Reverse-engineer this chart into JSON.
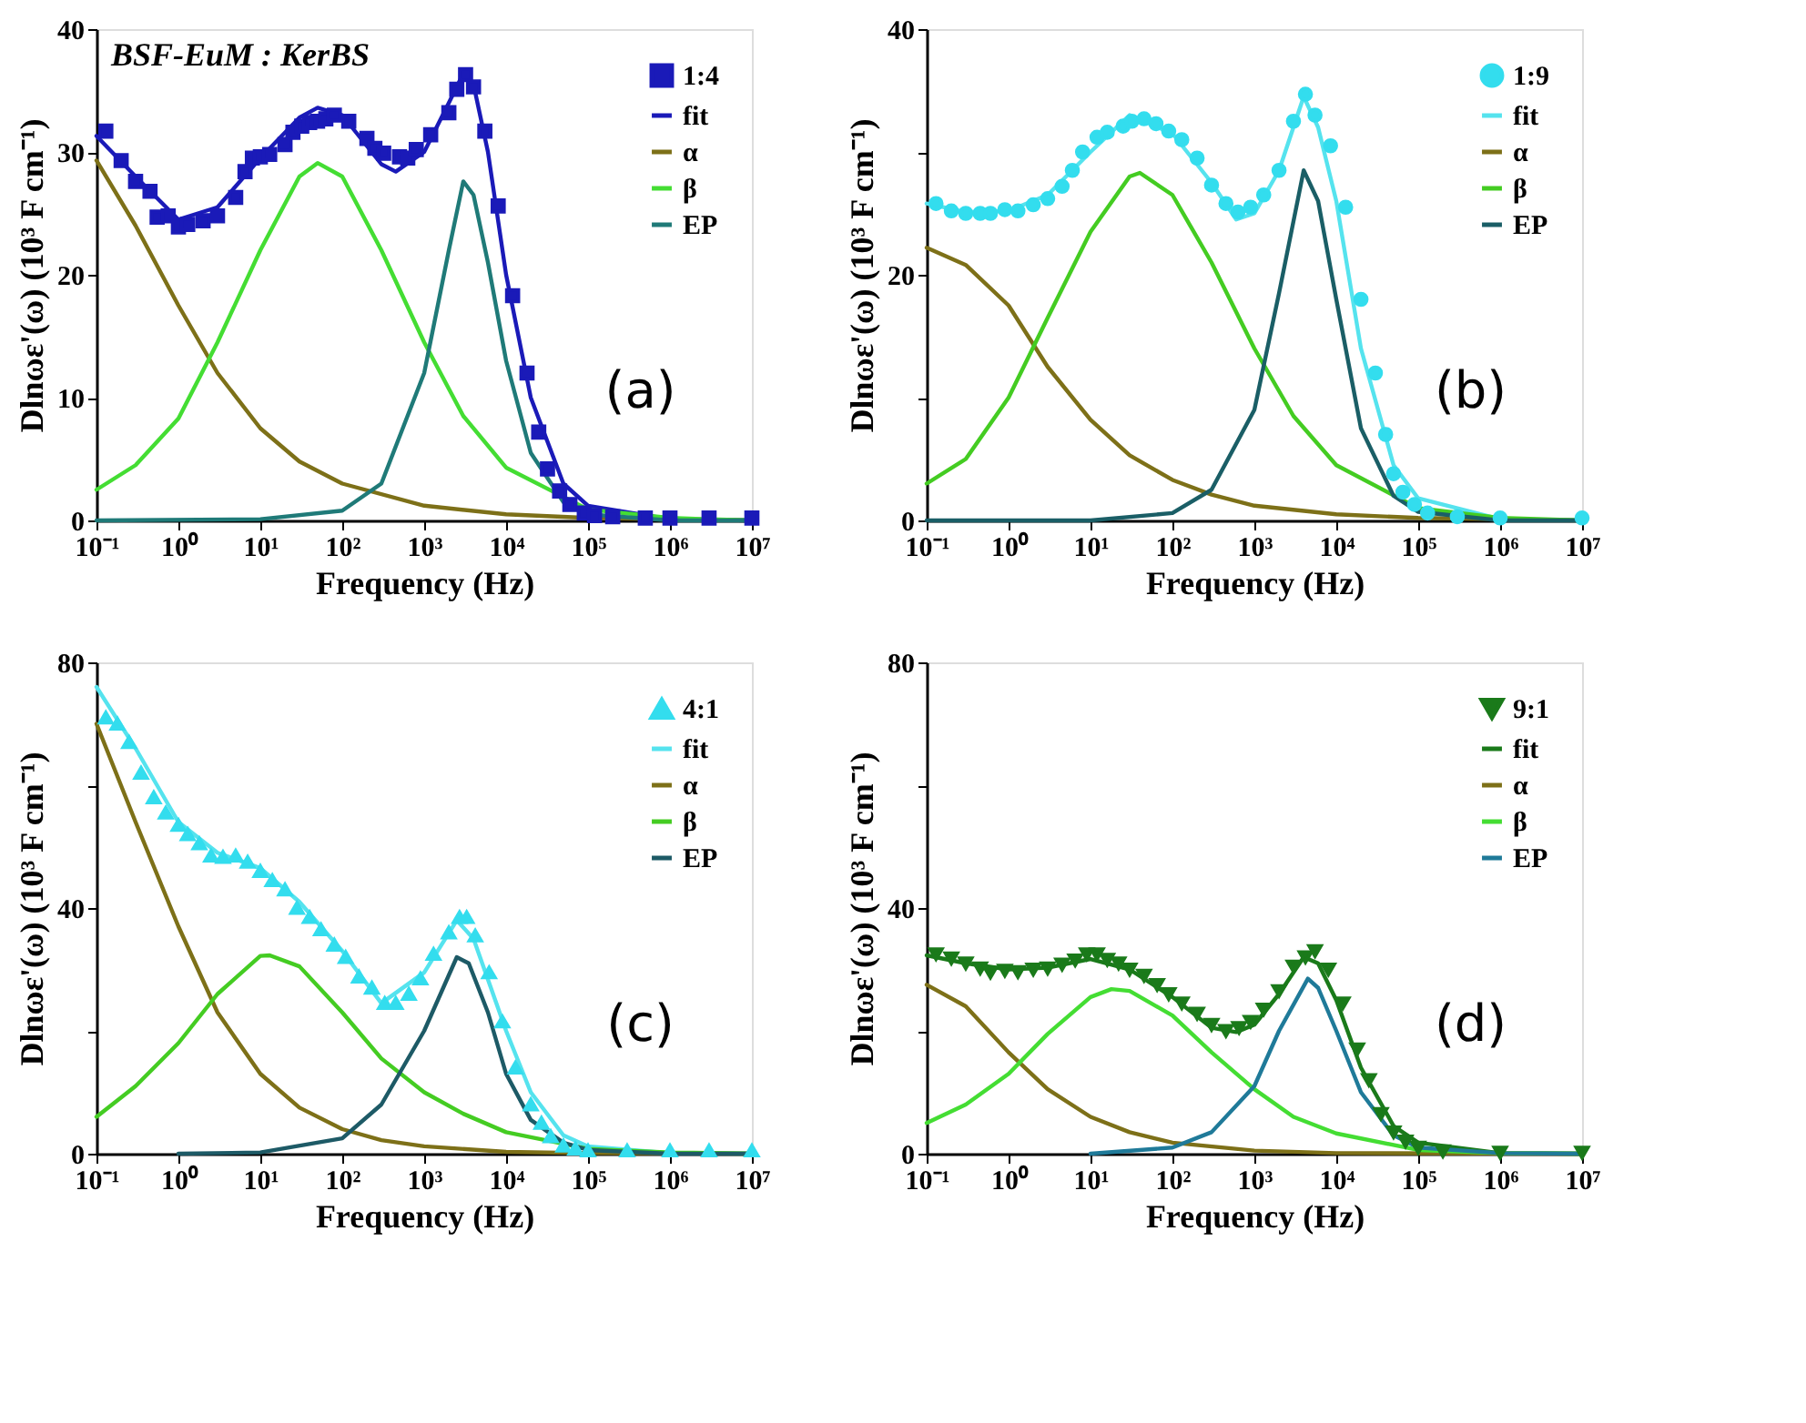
{
  "chart_data": [
    {
      "type": "line",
      "xlabel": "Frequency (Hz)",
      "ylabel": "Dlnωε'(ω) (10³ F cm⁻¹)",
      "log": "x",
      "legend": "top right",
      "xlim": [
        0.1,
        10000000
      ],
      "ylim": [
        0,
        40
      ],
      "xticks": [
        {
          "value": 0.1,
          "label": "10⁻¹"
        },
        {
          "value": 1,
          "label": "10⁰"
        },
        {
          "value": 10,
          "label": "10¹"
        },
        {
          "value": 100,
          "label": "10²"
        },
        {
          "value": 1000,
          "label": "10³"
        },
        {
          "value": 10000,
          "label": "10⁴"
        },
        {
          "value": 100000,
          "label": "10⁵"
        },
        {
          "value": 1000000,
          "label": "10⁶"
        },
        {
          "value": 10000000,
          "label": "10⁷"
        }
      ],
      "yticks": [
        0,
        10,
        20,
        30,
        40
      ],
      "annotations": [
        "BSF-EuM : KerBS",
        "(a)"
      ],
      "series": [
        {
          "name": "1:4",
          "type": "scatter",
          "marker": "square",
          "color": "#1a1ab8",
          "x": [
            0.13,
            0.2,
            0.3,
            0.45,
            0.55,
            0.75,
            1,
            1.3,
            2,
            3,
            5,
            6.5,
            8,
            10,
            13,
            20,
            25,
            32,
            40,
            50,
            63,
            80,
            120,
            200,
            250,
            320,
            500,
            630,
            800,
            1200,
            2000,
            2500,
            3200,
            4000,
            5500,
            8000,
            12000,
            18000,
            25000,
            32000,
            45000,
            60000,
            90000,
            120000,
            200000,
            500000,
            1000000,
            3000000,
            10000000
          ],
          "values": [
            31.7,
            29.3,
            27.6,
            26.8,
            24.7,
            24.8,
            23.9,
            24.1,
            24.4,
            24.8,
            26.3,
            28.4,
            29.5,
            29.6,
            29.8,
            30.6,
            31.6,
            32.1,
            32.4,
            32.5,
            32.7,
            33.0,
            32.5,
            31.1,
            30.3,
            29.9,
            29.6,
            29.5,
            30.2,
            31.4,
            33.2,
            35.1,
            36.3,
            35.3,
            31.7,
            25.6,
            18.3,
            12.0,
            7.2,
            4.2,
            2.4,
            1.3,
            0.6,
            0.4,
            0.3,
            0.2,
            0.2,
            0.2,
            0.2
          ]
        },
        {
          "name": "fit",
          "type": "line",
          "color": "#1a1ab8",
          "x": [
            0.1,
            0.3,
            1,
            3,
            10,
            30,
            50,
            100,
            300,
            450,
            1000,
            2000,
            3000,
            4000,
            6000,
            10000,
            20000,
            50000,
            100000,
            1000000,
            10000000
          ],
          "values": [
            31.3,
            28.0,
            24.5,
            25.5,
            29.5,
            32.8,
            33.6,
            33.0,
            29.0,
            28.4,
            30.0,
            34.0,
            36.4,
            35.5,
            30,
            20,
            10,
            3.0,
            1.2,
            0.1,
            0
          ]
        },
        {
          "name": "α",
          "type": "line",
          "color": "#7d7018",
          "x": [
            0.1,
            0.3,
            1,
            3,
            10,
            30,
            100,
            1000,
            10000,
            100000,
            10000000
          ],
          "values": [
            29.3,
            24,
            17.5,
            12.0,
            7.5,
            4.8,
            3.0,
            1.2,
            0.5,
            0.2,
            0
          ]
        },
        {
          "name": "β",
          "type": "line",
          "color": "#44dd33",
          "x": [
            0.1,
            0.3,
            1,
            3,
            10,
            30,
            50,
            100,
            300,
            1000,
            3000,
            10000,
            100000,
            1000000,
            10000000
          ],
          "values": [
            2.5,
            4.5,
            8.3,
            14.5,
            22,
            28,
            29.1,
            28,
            22,
            14.5,
            8.5,
            4.3,
            0.9,
            0.2,
            0
          ]
        },
        {
          "name": "EP",
          "type": "line",
          "color": "#1f7a78",
          "x": [
            0.1,
            10,
            100,
            300,
            1000,
            2000,
            3000,
            4000,
            6000,
            10000,
            20000,
            50000,
            100000,
            1000000,
            10000000
          ],
          "values": [
            0,
            0.1,
            0.8,
            3,
            12,
            22,
            27.6,
            26.5,
            21,
            13,
            5.5,
            1.5,
            0.5,
            0,
            0
          ]
        }
      ]
    },
    {
      "type": "line",
      "xlabel": "Frequency (Hz)",
      "ylabel": "Dlnωε'(ω) (10³ F cm⁻¹)",
      "log": "x",
      "legend": "top right",
      "xlim": [
        0.1,
        10000000
      ],
      "ylim": [
        0,
        40
      ],
      "xticks": [
        {
          "value": 0.1,
          "label": "10⁻¹"
        },
        {
          "value": 1,
          "label": "10⁰"
        },
        {
          "value": 10,
          "label": "10¹"
        },
        {
          "value": 100,
          "label": "10²"
        },
        {
          "value": 1000,
          "label": "10³"
        },
        {
          "value": 10000,
          "label": "10⁴"
        },
        {
          "value": 100000,
          "label": "10⁵"
        },
        {
          "value": 1000000,
          "label": "10⁶"
        },
        {
          "value": 10000000,
          "label": "10⁷"
        }
      ],
      "yticks": [
        0,
        {
          "value": 10,
          "label": null
        },
        20,
        {
          "value": 30,
          "label": null
        },
        40
      ],
      "annotations": [
        "(b)"
      ],
      "series": [
        {
          "name": "1:9",
          "type": "scatter",
          "marker": "circle",
          "color": "#33ddee",
          "x": [
            0.13,
            0.2,
            0.3,
            0.45,
            0.6,
            0.9,
            1.3,
            2,
            3,
            4.5,
            6,
            8,
            12,
            16,
            25,
            32,
            45,
            63,
            90,
            130,
            200,
            300,
            450,
            630,
            900,
            1300,
            2000,
            3000,
            4200,
            5500,
            8500,
            13000,
            20000,
            30000,
            40000,
            50000,
            65000,
            90000,
            130000,
            300000,
            1000000,
            10000000
          ],
          "values": [
            25.8,
            25.2,
            25.0,
            25.0,
            25.0,
            25.3,
            25.2,
            25.7,
            26.2,
            27.2,
            28.5,
            30.0,
            31.2,
            31.6,
            32.1,
            32.5,
            32.7,
            32.3,
            31.7,
            31.0,
            29.5,
            27.3,
            25.8,
            25.1,
            25.5,
            26.5,
            28.5,
            32.5,
            34.7,
            33.0,
            30.5,
            25.5,
            18,
            12,
            7,
            3.8,
            2.3,
            1.3,
            0.6,
            0.3,
            0.2,
            0.2
          ]
        },
        {
          "name": "fit",
          "type": "line",
          "color": "#55e3ee",
          "x": [
            0.1,
            0.3,
            1,
            3,
            10,
            30,
            100,
            300,
            600,
            1000,
            2000,
            4000,
            6000,
            10000,
            20000,
            50000,
            100000,
            1000000,
            10000000
          ],
          "values": [
            25.8,
            25.1,
            25.2,
            26.5,
            30.0,
            33.0,
            31.5,
            27.5,
            24.5,
            25,
            28.5,
            34.5,
            32,
            26,
            14,
            4.5,
            1.8,
            0.1,
            0
          ]
        },
        {
          "name": "α",
          "type": "line",
          "color": "#7d7018",
          "x": [
            0.1,
            0.3,
            1,
            3,
            10,
            30,
            100,
            300,
            1000,
            10000,
            100000,
            10000000
          ],
          "values": [
            22.2,
            20.8,
            17.5,
            12.5,
            8.2,
            5.3,
            3.3,
            2.1,
            1.2,
            0.5,
            0.2,
            0
          ]
        },
        {
          "name": "β",
          "type": "line",
          "color": "#44cc22",
          "x": [
            0.1,
            0.3,
            1,
            3,
            10,
            30,
            40,
            100,
            300,
            1000,
            3000,
            10000,
            100000,
            1000000,
            10000000
          ],
          "values": [
            3.0,
            5,
            10,
            16.5,
            23.5,
            28,
            28.3,
            26.5,
            21,
            14,
            8.5,
            4.5,
            1,
            0.2,
            0
          ]
        },
        {
          "name": "EP",
          "type": "line",
          "color": "#1a5e66",
          "x": [
            0.1,
            10,
            100,
            300,
            1000,
            2000,
            4000,
            6000,
            10000,
            20000,
            50000,
            100000,
            1000000,
            10000000
          ],
          "values": [
            0,
            0,
            0.6,
            2.5,
            9,
            18.5,
            28.5,
            26,
            18,
            7.5,
            2,
            0.7,
            0,
            0
          ]
        }
      ]
    },
    {
      "type": "line",
      "xlabel": "Frequency (Hz)",
      "ylabel": "Dlnωε'(ω) (10³ F cm⁻¹)",
      "log": "x",
      "legend": "top right",
      "xlim": [
        0.1,
        10000000
      ],
      "ylim": [
        0,
        80
      ],
      "xticks": [
        {
          "value": 0.1,
          "label": "10⁻¹"
        },
        {
          "value": 1,
          "label": "10⁰"
        },
        {
          "value": 10,
          "label": "10¹"
        },
        {
          "value": 100,
          "label": "10²"
        },
        {
          "value": 1000,
          "label": "10³"
        },
        {
          "value": 10000,
          "label": "10⁴"
        },
        {
          "value": 100000,
          "label": "10⁵"
        },
        {
          "value": 1000000,
          "label": "10⁶"
        },
        {
          "value": 10000000,
          "label": "10⁷"
        }
      ],
      "yticks": [
        0,
        {
          "value": 20,
          "label": null
        },
        40,
        {
          "value": 60,
          "label": null
        },
        80
      ],
      "annotations": [
        "(c)"
      ],
      "series": [
        {
          "name": "4:1",
          "type": "scatter",
          "marker": "triangle",
          "color": "#33ddee",
          "x": [
            0.13,
            0.18,
            0.25,
            0.35,
            0.5,
            0.7,
            1,
            1.3,
            1.8,
            2.5,
            3.5,
            5,
            7,
            10,
            14,
            20,
            28,
            40,
            55,
            80,
            110,
            160,
            230,
            330,
            450,
            650,
            900,
            1300,
            2000,
            2700,
            3300,
            4200,
            6200,
            9000,
            13000,
            20000,
            27000,
            35000,
            50000,
            70000,
            100000,
            300000,
            1000000,
            3000000,
            10000000
          ],
          "values": [
            71,
            70,
            67,
            62,
            58,
            55.5,
            53.5,
            52,
            50.5,
            48.5,
            48.3,
            48.5,
            47.5,
            46,
            44.5,
            43,
            40,
            38.5,
            36.5,
            34.0,
            32,
            28.8,
            27,
            24.5,
            24.5,
            26,
            28.5,
            32.5,
            36,
            38.5,
            38.5,
            35.5,
            29.5,
            21.5,
            14,
            8.0,
            5.0,
            2.8,
            1.3,
            0.8,
            0.5,
            0.5,
            0.5,
            0.5,
            0.5
          ]
        },
        {
          "name": "fit",
          "type": "line",
          "color": "#55e3ee",
          "x": [
            0.1,
            0.3,
            1,
            3,
            10,
            30,
            100,
            300,
            1000,
            2500,
            4000,
            10000,
            20000,
            50000,
            100000,
            1000000,
            10000000
          ],
          "values": [
            76,
            66,
            54,
            49,
            46.5,
            41,
            33,
            24.5,
            29.5,
            38,
            35,
            20,
            10,
            3,
            1.2,
            0.1,
            0
          ]
        },
        {
          "name": "α",
          "type": "line",
          "color": "#7d7018",
          "x": [
            0.1,
            0.3,
            1,
            3,
            10,
            30,
            100,
            300,
            1000,
            10000,
            100000,
            10000000
          ],
          "values": [
            70,
            54,
            37,
            23,
            13,
            7.5,
            4,
            2.2,
            1.2,
            0.3,
            0.1,
            0
          ]
        },
        {
          "name": "β",
          "type": "line",
          "color": "#44cc22",
          "x": [
            0.1,
            0.3,
            1,
            3,
            10,
            13,
            30,
            100,
            300,
            1000,
            3000,
            10000,
            100000,
            1000000,
            10000000
          ],
          "values": [
            6,
            11,
            18,
            26,
            32.2,
            32.3,
            30.5,
            23,
            15.5,
            10,
            6.5,
            3.5,
            0.8,
            0.2,
            0
          ]
        },
        {
          "name": "EP",
          "type": "line",
          "color": "#1d5a66",
          "x": [
            1,
            10,
            100,
            300,
            1000,
            2500,
            3500,
            6000,
            10000,
            20000,
            50000,
            100000,
            1000000,
            10000000
          ],
          "values": [
            0,
            0.2,
            2.5,
            8,
            20,
            32,
            31,
            23,
            13,
            5.5,
            1.8,
            0.6,
            0,
            0
          ]
        }
      ]
    },
    {
      "type": "line",
      "xlabel": "Frequency (Hz)",
      "ylabel": "Dlnωε'(ω) (10³ F cm⁻¹)",
      "log": "x",
      "legend": "top right",
      "xlim": [
        0.1,
        10000000
      ],
      "ylim": [
        0,
        80
      ],
      "xticks": [
        {
          "value": 0.1,
          "label": "10⁻¹"
        },
        {
          "value": 1,
          "label": "10⁰"
        },
        {
          "value": 10,
          "label": "10¹"
        },
        {
          "value": 100,
          "label": "10²"
        },
        {
          "value": 1000,
          "label": "10³"
        },
        {
          "value": 10000,
          "label": "10⁴"
        },
        {
          "value": 100000,
          "label": "10⁵"
        },
        {
          "value": 1000000,
          "label": "10⁶"
        },
        {
          "value": 10000000,
          "label": "10⁷"
        }
      ],
      "yticks": [
        0,
        {
          "value": 20,
          "label": null
        },
        40,
        {
          "value": 60,
          "label": null
        },
        80
      ],
      "annotations": [
        "(d)"
      ],
      "series": [
        {
          "name": "9:1",
          "type": "scatter",
          "marker": "triangle-down",
          "color": "#1a7a1a",
          "x": [
            0.13,
            0.2,
            0.3,
            0.45,
            0.6,
            0.9,
            1.3,
            2,
            3,
            4.5,
            6.5,
            9,
            12,
            16,
            22,
            30,
            45,
            65,
            90,
            130,
            200,
            300,
            450,
            650,
            900,
            1300,
            2000,
            3000,
            4200,
            5500,
            8000,
            12000,
            18000,
            25000,
            35000,
            50000,
            70000,
            100000,
            200000,
            1000000,
            10000000
          ],
          "values": [
            32.5,
            31.8,
            31.0,
            30.2,
            29.5,
            29.8,
            29.6,
            30.0,
            30.2,
            30.8,
            31.5,
            32.5,
            32.5,
            31.6,
            31.0,
            30.0,
            29.0,
            27.5,
            26.0,
            24.5,
            22.8,
            21.0,
            20.0,
            20.5,
            21.5,
            23.5,
            26.5,
            30.5,
            32.0,
            33.0,
            30.0,
            24.5,
            17,
            12,
            6.5,
            3.5,
            2.0,
            1.0,
            0.4,
            0.2,
            0.2
          ]
        },
        {
          "name": "fit",
          "type": "line",
          "color": "#1a7a1a",
          "x": [
            0.1,
            0.3,
            1,
            3,
            10,
            30,
            100,
            300,
            600,
            1000,
            2000,
            4000,
            6000,
            10000,
            20000,
            50000,
            100000,
            1000000,
            10000000
          ],
          "values": [
            32.3,
            31,
            30,
            30.3,
            31.7,
            30,
            25.5,
            20.5,
            19.8,
            21,
            26,
            32,
            31,
            25,
            14,
            4.5,
            1.8,
            0.1,
            0
          ]
        },
        {
          "name": "α",
          "type": "line",
          "color": "#7d7018",
          "x": [
            0.1,
            0.3,
            1,
            3,
            10,
            30,
            100,
            1000,
            10000,
            10000000
          ],
          "values": [
            27.5,
            24,
            16.5,
            10.5,
            6,
            3.5,
            1.8,
            0.5,
            0.1,
            0
          ]
        },
        {
          "name": "β",
          "type": "line",
          "color": "#44dd33",
          "x": [
            0.1,
            0.3,
            1,
            3,
            10,
            18,
            30,
            100,
            300,
            1000,
            3000,
            10000,
            100000,
            1000000,
            10000000
          ],
          "values": [
            5,
            8,
            13,
            19.5,
            25.5,
            26.8,
            26.5,
            22.5,
            16.5,
            10.5,
            6,
            3.3,
            0.6,
            0.1,
            0
          ]
        },
        {
          "name": "EP",
          "type": "line",
          "color": "#1f7a99",
          "x": [
            10,
            100,
            300,
            1000,
            2000,
            4500,
            6000,
            10000,
            20000,
            50000,
            100000,
            1000000,
            10000000
          ],
          "values": [
            0,
            1,
            3.5,
            11,
            20,
            28.5,
            27,
            20,
            10,
            3,
            1,
            0.1,
            0
          ]
        }
      ]
    }
  ]
}
